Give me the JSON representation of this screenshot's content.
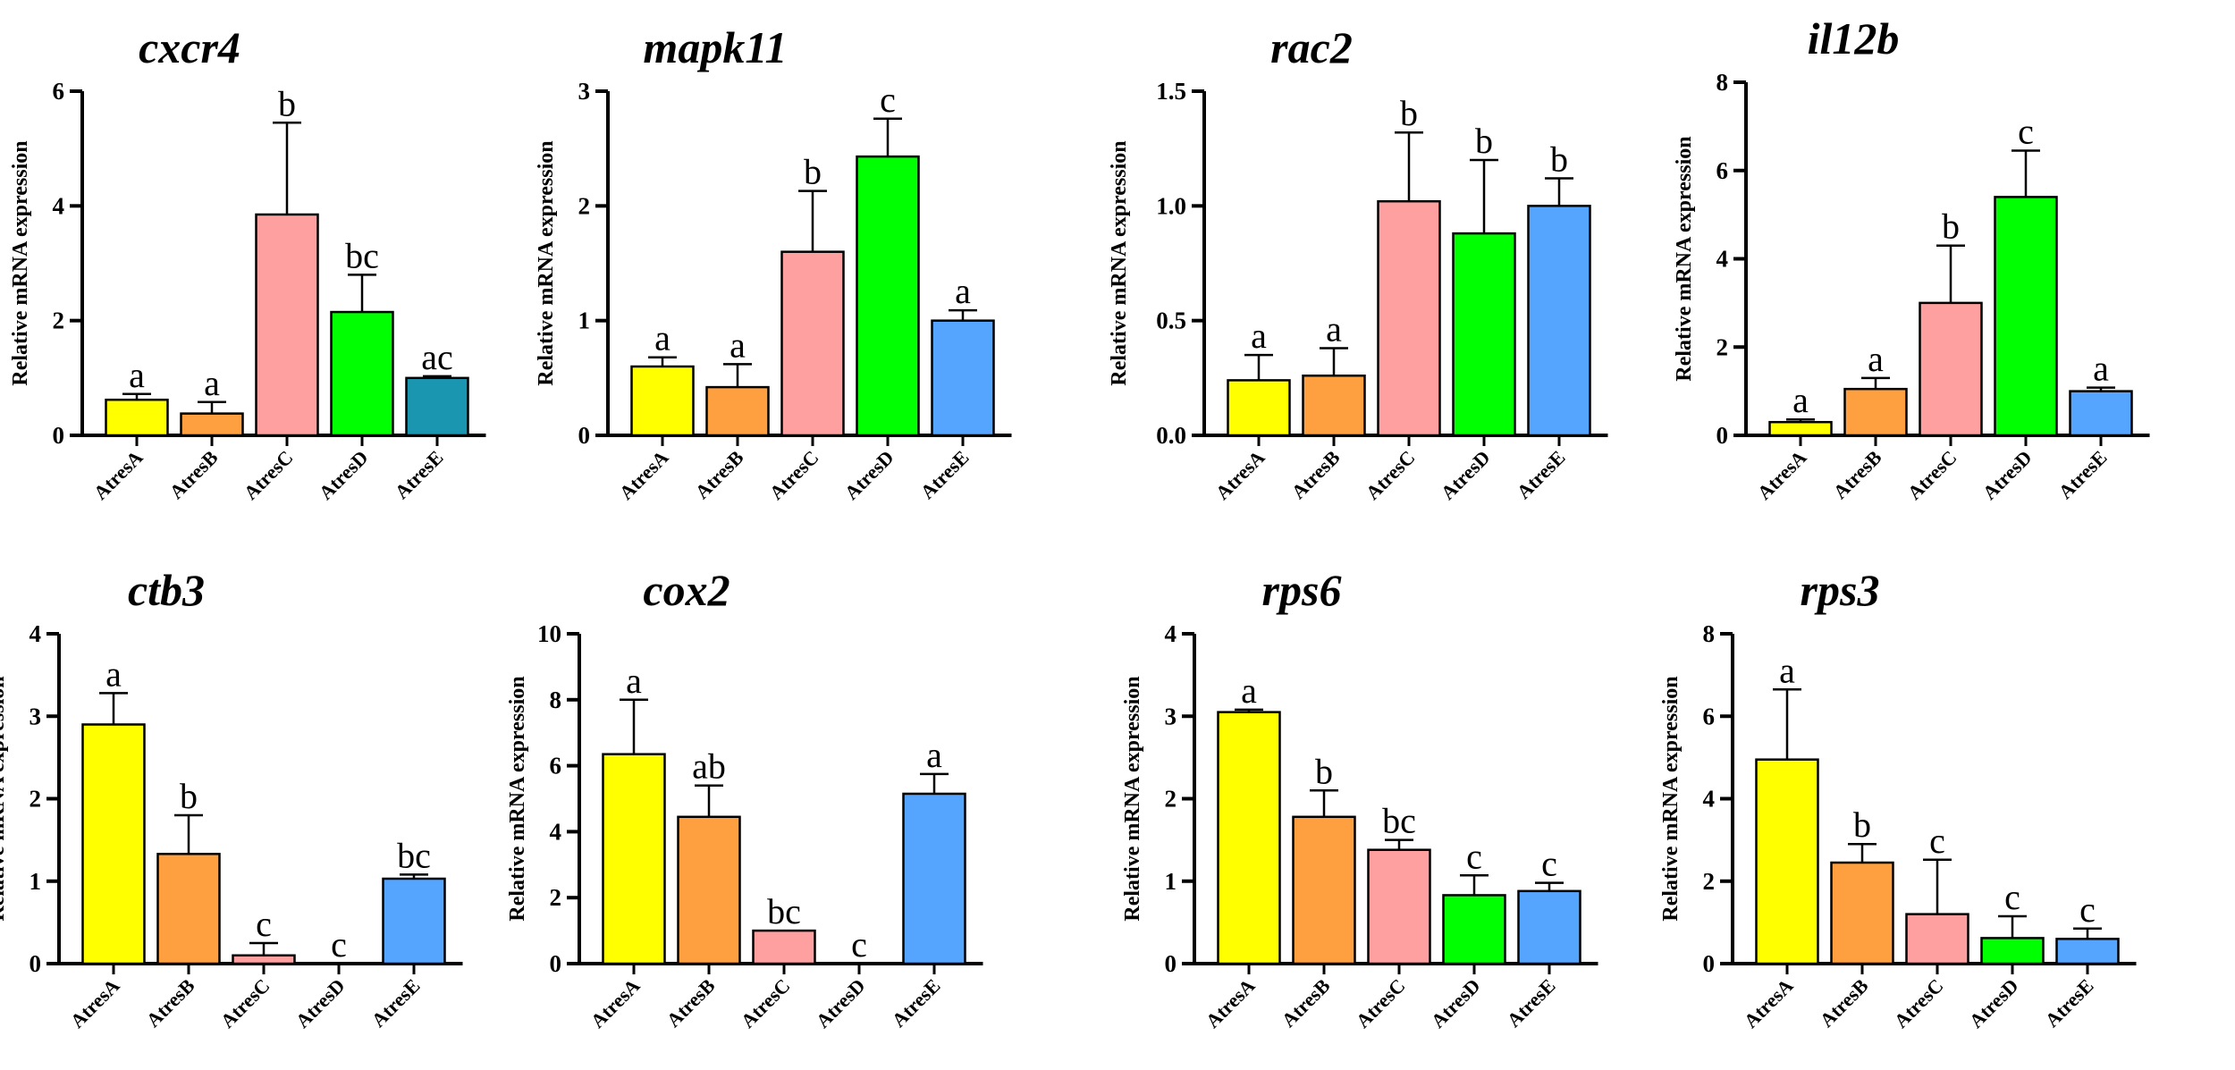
{
  "chart_data": [
    {
      "type": "bar",
      "title": "cxcr4",
      "ylabel": "Relative mRNA expression",
      "ylim": [
        0,
        6
      ],
      "yticks": [
        "0",
        "2",
        "4",
        "6"
      ],
      "categories": [
        "AtresA",
        "AtresB",
        "AtresC",
        "AtresD",
        "AtresE"
      ],
      "values": [
        0.62,
        0.38,
        3.85,
        2.15,
        1.0
      ],
      "error_upper": [
        0.72,
        0.58,
        5.45,
        2.8,
        1.03
      ],
      "letters": [
        "a",
        "a",
        "b",
        "bc",
        "ac"
      ],
      "colors": [
        "#ffff00",
        "#ffa040",
        "#ffa0a0",
        "#00ff00",
        "#1a96b0"
      ]
    },
    {
      "type": "bar",
      "title": "mapk11",
      "ylabel": "Relative mRNA expression",
      "ylim": [
        0,
        3
      ],
      "yticks": [
        "0",
        "1",
        "2",
        "3"
      ],
      "categories": [
        "AtresA",
        "AtresB",
        "AtresC",
        "AtresD",
        "AtresE"
      ],
      "values": [
        0.6,
        0.42,
        1.6,
        2.43,
        1.0
      ],
      "error_upper": [
        0.68,
        0.62,
        2.13,
        2.76,
        1.09
      ],
      "letters": [
        "a",
        "a",
        "b",
        "c",
        "a"
      ],
      "colors": [
        "#ffff00",
        "#ffa040",
        "#ffa0a0",
        "#00ff00",
        "#55a5ff"
      ]
    },
    {
      "type": "bar",
      "title": "rac2",
      "ylabel": "Relative mRNA expression",
      "ylim": [
        0,
        1.5
      ],
      "yticks": [
        "0.0",
        "0.5",
        "1.0",
        "1.5"
      ],
      "categories": [
        "AtresA",
        "AtresB",
        "AtresC",
        "AtresD",
        "AtresE"
      ],
      "values": [
        0.24,
        0.26,
        1.02,
        0.88,
        1.0
      ],
      "error_upper": [
        0.35,
        0.38,
        1.32,
        1.2,
        1.12
      ],
      "letters": [
        "a",
        "a",
        "b",
        "b",
        "b"
      ],
      "colors": [
        "#ffff00",
        "#ffa040",
        "#ffa0a0",
        "#00ff00",
        "#55a5ff"
      ]
    },
    {
      "type": "bar",
      "title": "il12b",
      "ylabel": "Relative mRNA expression",
      "ylim": [
        0,
        8
      ],
      "yticks": [
        "0",
        "2",
        "4",
        "6",
        "8"
      ],
      "categories": [
        "AtresA",
        "AtresB",
        "AtresC",
        "AtresD",
        "AtresE"
      ],
      "values": [
        0.3,
        1.05,
        3.0,
        5.4,
        1.0
      ],
      "error_upper": [
        0.36,
        1.3,
        4.3,
        6.45,
        1.08
      ],
      "letters": [
        "a",
        "a",
        "b",
        "c",
        "a"
      ],
      "colors": [
        "#ffff00",
        "#ffa040",
        "#ffa0a0",
        "#00ff00",
        "#55a5ff"
      ]
    },
    {
      "type": "bar",
      "title": "ctb3",
      "ylabel": "Relative mRNA expression",
      "ylim": [
        0,
        4
      ],
      "yticks": [
        "0",
        "1",
        "2",
        "3",
        "4"
      ],
      "categories": [
        "AtresA",
        "AtresB",
        "AtresC",
        "AtresD",
        "AtresE"
      ],
      "values": [
        2.9,
        1.33,
        0.1,
        0.0,
        1.03
      ],
      "error_upper": [
        3.28,
        1.8,
        0.25,
        0.0,
        1.08
      ],
      "letters": [
        "a",
        "b",
        "c",
        "c",
        "bc"
      ],
      "colors": [
        "#ffff00",
        "#ffa040",
        "#ffa0a0",
        "#00ff00",
        "#55a5ff"
      ]
    },
    {
      "type": "bar",
      "title": "cox2",
      "ylabel": "Relative mRNA expression",
      "ylim": [
        0,
        10
      ],
      "yticks": [
        "0",
        "2",
        "4",
        "6",
        "8",
        "10"
      ],
      "categories": [
        "AtresA",
        "AtresB",
        "AtresC",
        "AtresD",
        "AtresE"
      ],
      "values": [
        6.35,
        4.45,
        1.0,
        0.0,
        5.15
      ],
      "error_upper": [
        8.0,
        5.4,
        1.0,
        0.0,
        5.75
      ],
      "letters": [
        "a",
        "ab",
        "bc",
        "c",
        "a"
      ],
      "colors": [
        "#ffff00",
        "#ffa040",
        "#ffa0a0",
        "#00ff00",
        "#55a5ff"
      ]
    },
    {
      "type": "bar",
      "title": "rps6",
      "ylabel": "Relative mRNA expression",
      "ylim": [
        0,
        4
      ],
      "yticks": [
        "0",
        "1",
        "2",
        "3",
        "4"
      ],
      "categories": [
        "AtresA",
        "AtresB",
        "AtresC",
        "AtresD",
        "AtresE"
      ],
      "values": [
        3.05,
        1.78,
        1.38,
        0.83,
        0.88
      ],
      "error_upper": [
        3.08,
        2.1,
        1.5,
        1.07,
        0.98
      ],
      "letters": [
        "a",
        "b",
        "bc",
        "c",
        "c"
      ],
      "colors": [
        "#ffff00",
        "#ffa040",
        "#ffa0a0",
        "#00ff00",
        "#55a5ff"
      ]
    },
    {
      "type": "bar",
      "title": "rps3",
      "ylabel": "Relative mRNA expression",
      "ylim": [
        0,
        8
      ],
      "yticks": [
        "0",
        "2",
        "4",
        "6",
        "8"
      ],
      "categories": [
        "AtresA",
        "AtresB",
        "AtresC",
        "AtresD",
        "AtresE"
      ],
      "values": [
        4.95,
        2.45,
        1.2,
        0.62,
        0.6
      ],
      "error_upper": [
        6.65,
        2.9,
        2.52,
        1.15,
        0.85
      ],
      "letters": [
        "a",
        "b",
        "c",
        "c",
        "c"
      ],
      "colors": [
        "#ffff00",
        "#ffa040",
        "#ffa0a0",
        "#00ff00",
        "#55a5ff"
      ]
    }
  ]
}
